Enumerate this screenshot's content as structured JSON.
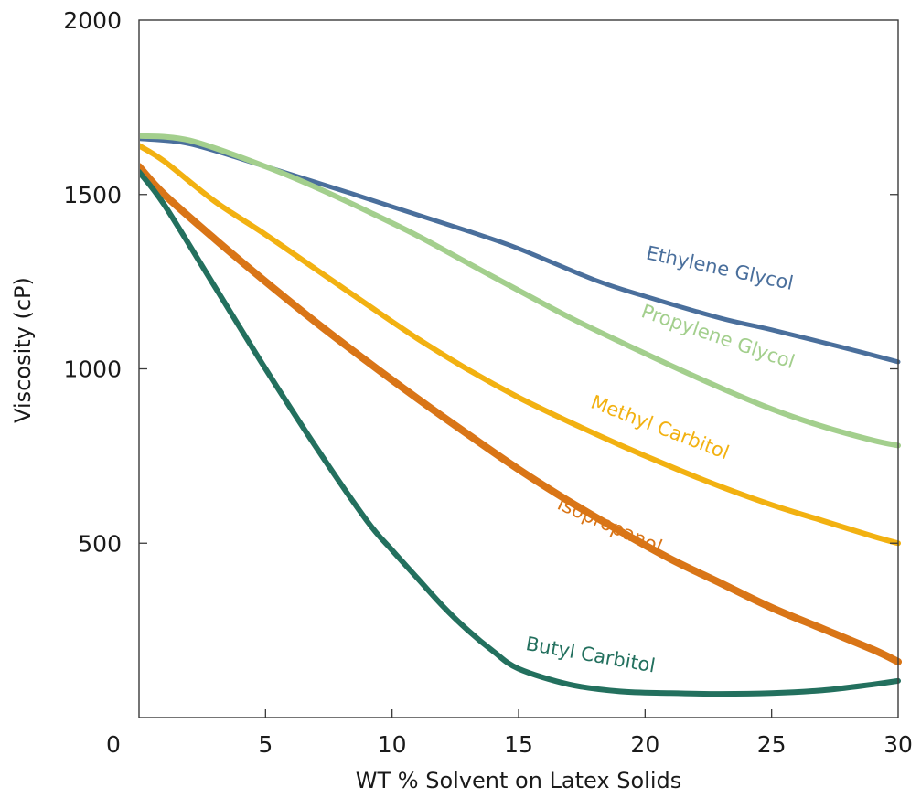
{
  "chart_data": {
    "type": "line",
    "title": "",
    "xlabel": "WT % Solvent on Latex Solids",
    "ylabel": "Viscosity (cP)",
    "xlim": [
      0,
      30
    ],
    "ylim": [
      0,
      2000
    ],
    "x_ticks": [
      0,
      5,
      10,
      15,
      20,
      25,
      30
    ],
    "y_ticks": [
      500,
      1000,
      1500,
      2000
    ],
    "x_tick_labels": [
      "0",
      "5",
      "10",
      "15",
      "20",
      "25",
      "30"
    ],
    "y_tick_labels": [
      "500",
      "1000",
      "1500",
      "2000"
    ],
    "grid": false,
    "legend": "none",
    "series": [
      {
        "name": "Ethylene Glycol",
        "color": "#4a6f9c",
        "points": [
          [
            0,
            1660
          ],
          [
            2,
            1645
          ],
          [
            5,
            1580
          ],
          [
            8,
            1512
          ],
          [
            10,
            1465
          ],
          [
            13,
            1395
          ],
          [
            15,
            1345
          ],
          [
            18,
            1255
          ],
          [
            20,
            1208
          ],
          [
            23,
            1145
          ],
          [
            25,
            1112
          ],
          [
            28,
            1058
          ],
          [
            30,
            1020
          ]
        ]
      },
      {
        "name": "Propylene Glycol",
        "color": "#a3cf8d",
        "points": [
          [
            0,
            1668
          ],
          [
            2,
            1655
          ],
          [
            5,
            1580
          ],
          [
            7,
            1520
          ],
          [
            9,
            1453
          ],
          [
            11,
            1382
          ],
          [
            13,
            1303
          ],
          [
            15,
            1225
          ],
          [
            17,
            1148
          ],
          [
            19,
            1078
          ],
          [
            21,
            1010
          ],
          [
            23,
            945
          ],
          [
            25,
            885
          ],
          [
            27,
            835
          ],
          [
            29,
            795
          ],
          [
            30,
            780
          ]
        ]
      },
      {
        "name": "Methyl Carbitol",
        "color": "#f2b111",
        "points": [
          [
            0,
            1640
          ],
          [
            1,
            1595
          ],
          [
            3,
            1480
          ],
          [
            5,
            1385
          ],
          [
            7,
            1285
          ],
          [
            9,
            1185
          ],
          [
            11,
            1087
          ],
          [
            13,
            998
          ],
          [
            15,
            918
          ],
          [
            17,
            848
          ],
          [
            19,
            782
          ],
          [
            21,
            720
          ],
          [
            23,
            662
          ],
          [
            25,
            610
          ],
          [
            27,
            565
          ],
          [
            29,
            520
          ],
          [
            30,
            500
          ]
        ]
      },
      {
        "name": "Isopropanol",
        "color": "#d97517",
        "points": [
          [
            0,
            1580
          ],
          [
            1,
            1500
          ],
          [
            3,
            1372
          ],
          [
            5,
            1250
          ],
          [
            7,
            1133
          ],
          [
            9,
            1022
          ],
          [
            11,
            915
          ],
          [
            13,
            812
          ],
          [
            15,
            712
          ],
          [
            17,
            620
          ],
          [
            19,
            535
          ],
          [
            21,
            455
          ],
          [
            23,
            385
          ],
          [
            25,
            315
          ],
          [
            27,
            255
          ],
          [
            29,
            195
          ],
          [
            30,
            160
          ]
        ]
      },
      {
        "name": "Butyl Carbitol",
        "color": "#23705e",
        "points": [
          [
            0,
            1565
          ],
          [
            1,
            1470
          ],
          [
            3,
            1235
          ],
          [
            5,
            1000
          ],
          [
            7,
            775
          ],
          [
            9,
            565
          ],
          [
            10,
            480
          ],
          [
            11,
            400
          ],
          [
            12,
            320
          ],
          [
            13,
            250
          ],
          [
            14,
            190
          ],
          [
            15,
            140
          ],
          [
            17,
            95
          ],
          [
            19,
            75
          ],
          [
            21,
            70
          ],
          [
            23,
            68
          ],
          [
            25,
            70
          ],
          [
            27,
            78
          ],
          [
            29,
            95
          ],
          [
            30,
            105
          ]
        ]
      }
    ],
    "annotations": [
      {
        "text": "Ethylene Glycol",
        "x": 22.9,
        "y": 1271,
        "rotate": 12,
        "color": "#4a6f9c"
      },
      {
        "text": "Propylene Glycol",
        "x": 22.8,
        "y": 1075,
        "rotate": 19,
        "color": "#a3cf8d"
      },
      {
        "text": "Methyl Carbitol",
        "x": 20.5,
        "y": 815,
        "rotate": 21,
        "color": "#f2b111"
      },
      {
        "text": "Isopropanol",
        "x": 18.5,
        "y": 535,
        "rotate": 24,
        "color": "#d97517"
      },
      {
        "text": "Butyl Carbitol",
        "x": 17.8,
        "y": 162,
        "rotate": 10,
        "color": "#23705e"
      }
    ]
  }
}
